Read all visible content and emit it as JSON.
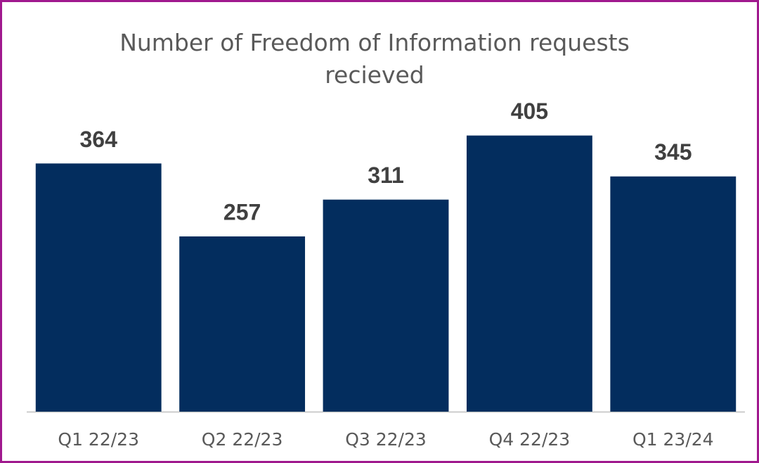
{
  "chart_data": {
    "type": "bar",
    "title": "Number of Freedom of Information requests recieved",
    "categories": [
      "Q1 22/23",
      "Q2 22/23",
      "Q3 22/23",
      "Q4 22/23",
      "Q1 23/24"
    ],
    "values": [
      364,
      257,
      311,
      405,
      345
    ],
    "color": "#032d5e",
    "ylim": [
      0,
      450
    ],
    "grid": false
  }
}
